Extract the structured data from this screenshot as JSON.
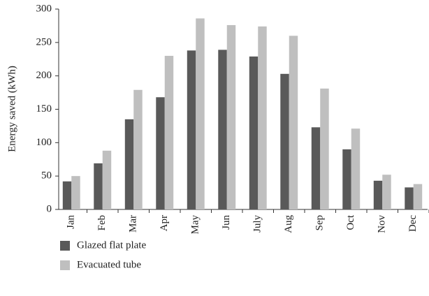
{
  "chart_data": {
    "type": "bar",
    "ylabel": "Energy saved (kWh)",
    "categories": [
      "Jan",
      "Feb",
      "Mar",
      "Apr",
      "May",
      "Jun",
      "July",
      "Aug",
      "Sep",
      "Oct",
      "Nov",
      "Dec"
    ],
    "series": [
      {
        "name": "Glazed flat plate",
        "color": "#595959",
        "values": [
          42,
          69,
          135,
          168,
          238,
          239,
          229,
          203,
          123,
          90,
          43,
          33
        ]
      },
      {
        "name": "Evacuated tube",
        "color": "#bfbfbf",
        "values": [
          50,
          88,
          179,
          230,
          286,
          276,
          274,
          260,
          181,
          121,
          52,
          38
        ]
      }
    ],
    "ylim": [
      0,
      300
    ],
    "yticks": [
      0,
      50,
      100,
      150,
      200,
      250,
      300
    ],
    "grid": false
  }
}
